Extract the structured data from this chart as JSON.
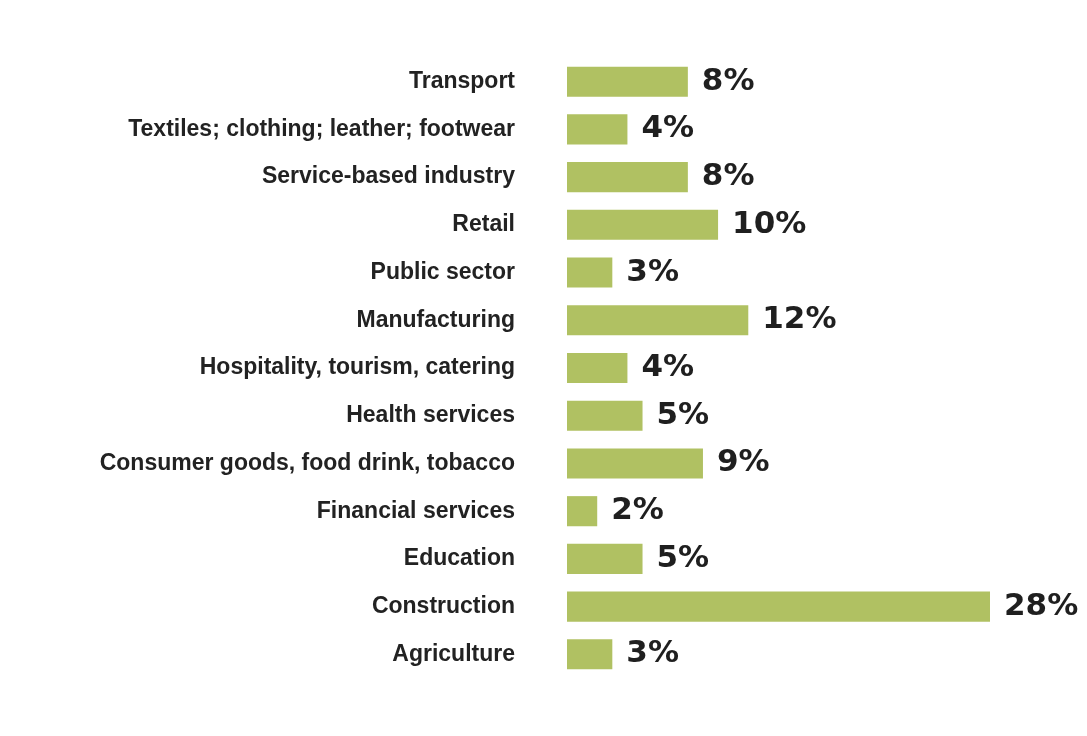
{
  "chart_data": {
    "type": "bar",
    "orientation": "horizontal",
    "categories": [
      "Transport",
      "Textiles; clothing; leather; footwear",
      "Service-based industry",
      "Retail",
      "Public sector",
      "Manufacturing",
      "Hospitality, tourism, catering",
      "Health services",
      "Consumer goods, food drink, tobacco",
      "Financial services",
      "Education",
      "Construction",
      "Agriculture"
    ],
    "values": [
      8,
      4,
      8,
      10,
      3,
      12,
      4,
      5,
      9,
      2,
      5,
      28,
      3
    ],
    "value_labels": [
      "8%",
      "4%",
      "8%",
      "10%",
      "3%",
      "12%",
      "4%",
      "5%",
      "9%",
      "2%",
      "5%",
      "28%",
      "3%"
    ],
    "color": "#b0c162",
    "legend": false
  }
}
